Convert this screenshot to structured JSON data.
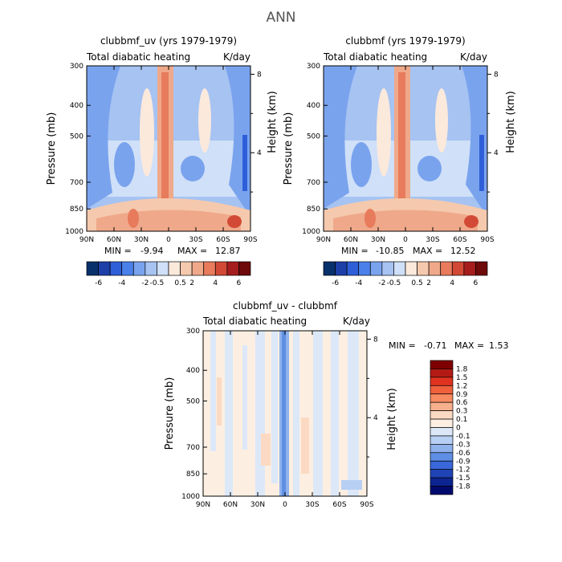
{
  "figure_title": "ANN",
  "chart_data": [
    {
      "type": "heatmap",
      "id": "left",
      "title": "clubbmf_uv (yrs 1979-1979)",
      "subtitle_left": "Total diabatic heating",
      "subtitle_right": "K/day",
      "ylabel": "Pressure (mb)",
      "ylabel_right": "Height (km)",
      "xticks": [
        "90N",
        "60N",
        "30N",
        "0",
        "30S",
        "60S",
        "90S"
      ],
      "yticks": [
        "300",
        "400",
        "500",
        "700",
        "850",
        "1000"
      ],
      "yticks_right": [
        "8",
        "4"
      ],
      "ylim": [
        1000,
        300
      ],
      "min_label": "MIN =",
      "min_value": "-9.94",
      "max_label": "MAX =",
      "max_value": "12.87",
      "legend_levels": [
        "-6",
        "-4",
        "-2",
        "-0.5",
        "0.5",
        "2",
        "4",
        "6"
      ]
    },
    {
      "type": "heatmap",
      "id": "right",
      "title": "clubbmf (yrs 1979-1979)",
      "subtitle_left": "Total diabatic heating",
      "subtitle_right": "K/day",
      "ylabel": "Pressure (mb)",
      "ylabel_right": "Height (km)",
      "xticks": [
        "90N",
        "60N",
        "30N",
        "0",
        "30S",
        "60S",
        "90S"
      ],
      "yticks": [
        "300",
        "400",
        "500",
        "700",
        "850",
        "1000"
      ],
      "yticks_right": [
        "8",
        "4"
      ],
      "ylim": [
        1000,
        300
      ],
      "min_label": "MIN =",
      "min_value": "-10.85",
      "max_label": "MAX =",
      "max_value": "12.52",
      "legend_levels": [
        "-6",
        "-4",
        "-2",
        "-0.5",
        "0.5",
        "2",
        "4",
        "6"
      ]
    },
    {
      "type": "heatmap",
      "id": "diff",
      "title": "clubbmf_uv - clubbmf",
      "subtitle_left": "Total diabatic heating",
      "subtitle_right": "K/day",
      "ylabel": "Pressure (mb)",
      "ylabel_right": "Height (km)",
      "xticks": [
        "90N",
        "60N",
        "30N",
        "0",
        "30S",
        "60S",
        "90S"
      ],
      "yticks": [
        "300",
        "400",
        "500",
        "700",
        "850",
        "1000"
      ],
      "yticks_right": [
        "8",
        "4"
      ],
      "ylim": [
        1000,
        300
      ],
      "min_label": "MIN =",
      "min_value": "-0.71",
      "max_label": "MAX =",
      "max_value": "1.53",
      "legend_levels": [
        "1.8",
        "1.5",
        "1.2",
        "0.9",
        "0.6",
        "0.3",
        "0.1",
        "0",
        "-0.1",
        "-0.3",
        "-0.6",
        "-0.9",
        "-1.2",
        "-1.5",
        "-1.8"
      ]
    }
  ],
  "colors": {
    "main_scale": [
      "#08306b",
      "#1c3fa8",
      "#2f5fd8",
      "#4a80ea",
      "#7aa3ee",
      "#a6c3f2",
      "#cfe0f8",
      "#fbe9dc",
      "#f5c9ad",
      "#efa98a",
      "#e77b5c",
      "#d24a35",
      "#a51d1d",
      "#6e0a0a"
    ],
    "diff_scale": [
      "#7f0000",
      "#b41a14",
      "#e0331f",
      "#f0603d",
      "#f88a60",
      "#f7b08c",
      "#fbd9c2",
      "#fcefe2",
      "#dce8f8",
      "#b7cff2",
      "#8fb2ec",
      "#5f8fe4",
      "#3a67d9",
      "#1f44b6",
      "#0d2592",
      "#000a6e"
    ]
  }
}
